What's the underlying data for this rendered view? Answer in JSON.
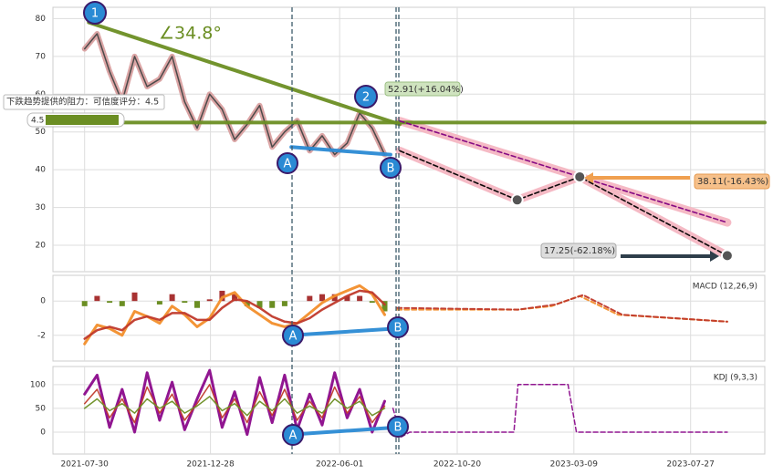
{
  "chart_data": [
    {
      "type": "line",
      "xlim": [
        -38,
        816
      ],
      "ylim": [
        13,
        83
      ],
      "yticks": [
        20,
        30,
        40,
        50,
        60,
        70,
        80
      ],
      "grid": true,
      "x": [
        0,
        15,
        30,
        45,
        60,
        75,
        90,
        105,
        120,
        135,
        150,
        165,
        180,
        195,
        210,
        225,
        240,
        255,
        270,
        285,
        300,
        315,
        330,
        345,
        360
      ],
      "series": [
        {
          "color": "#f4b6c2",
          "width": 9,
          "x": [
            378,
            519,
            594,
            771
          ],
          "values": [
            45,
            32,
            38.11,
            17.25
          ]
        },
        {
          "color": "#f4b6c2",
          "width": 9,
          "x": [
            378,
            771
          ],
          "values": [
            52.91,
            26
          ]
        },
        {
          "color": "#d9a0a0",
          "width": 6,
          "values": [
            72,
            76,
            66,
            58,
            70,
            62,
            64,
            70,
            58,
            51,
            60,
            56,
            48,
            52,
            57,
            46,
            50,
            53,
            45,
            49,
            44,
            47,
            55,
            51,
            44
          ]
        },
        {
          "color": "#444444",
          "width": 1.5,
          "values": [
            72,
            76,
            66,
            58,
            70,
            62,
            64,
            70,
            58,
            51,
            60,
            56,
            48,
            52,
            57,
            46,
            50,
            53,
            45,
            49,
            44,
            47,
            55,
            51,
            44
          ]
        },
        {
          "color": "#6b8e23",
          "width": 4,
          "x": [
            5,
            378
          ],
          "values": [
            79,
            52
          ]
        },
        {
          "color": "#6b8e23",
          "width": 4,
          "x": [
            -38,
            816
          ],
          "values": [
            52.5,
            52.5
          ]
        },
        {
          "color": "#2a8ad4",
          "width": 4,
          "x": [
            248,
            367
          ],
          "values": [
            46,
            44
          ]
        },
        {
          "color": "#000000",
          "width": 1.6,
          "dash": true,
          "x": [
            378,
            519,
            594,
            771
          ],
          "values": [
            45,
            32,
            38.11,
            17.25
          ]
        },
        {
          "color": "#800080",
          "width": 1.6,
          "dash": true,
          "x": [
            378,
            771
          ],
          "values": [
            52.91,
            26
          ]
        }
      ]
    },
    {
      "type": "line",
      "xlim": [
        -38,
        816
      ],
      "ylim": [
        -3.5,
        1.5
      ],
      "yticks": [
        0,
        -2
      ],
      "grid": true,
      "title": "MACD (12,26,9)",
      "x": [
        0,
        15,
        30,
        45,
        60,
        75,
        90,
        105,
        120,
        135,
        150,
        165,
        180,
        195,
        210,
        225,
        240,
        255,
        270,
        285,
        300,
        315,
        330,
        345,
        360
      ],
      "hist": {
        "up_color": "#a83232",
        "down_color": "#6b8e23",
        "values": [
          -0.3,
          0.3,
          -0.1,
          -0.3,
          0.5,
          0,
          -0.2,
          0.4,
          -0.1,
          -0.4,
          0.1,
          0.6,
          0.4,
          -0.3,
          -0.4,
          -0.4,
          -0.3,
          0,
          0.3,
          0.4,
          0.4,
          0.3,
          0.3,
          -0.1,
          -0.6
        ]
      },
      "series": [
        {
          "color": "#f28e2b",
          "width": 3,
          "values": [
            -2.5,
            -1.4,
            -1.6,
            -2.0,
            -0.6,
            -0.9,
            -1.3,
            -0.3,
            -0.8,
            -1.5,
            -1.0,
            0.2,
            0.5,
            -0.3,
            -0.8,
            -1.3,
            -1.5,
            -1.3,
            -0.7,
            -0.1,
            0.3,
            0.6,
            0.9,
            0.4,
            -0.8
          ]
        },
        {
          "color": "#c0392b",
          "width": 2.5,
          "values": [
            -2.2,
            -1.7,
            -1.5,
            -1.7,
            -1.1,
            -0.9,
            -1.1,
            -0.7,
            -0.7,
            -1.1,
            -1.1,
            -0.4,
            0.1,
            0,
            -0.4,
            -0.9,
            -1.2,
            -1.3,
            -1.0,
            -0.5,
            -0.1,
            0.3,
            0.6,
            0.5,
            -0.2
          ]
        },
        {
          "color": "#f28e2b",
          "width": 2,
          "dash": true,
          "x": [
            375,
            520,
            560,
            594,
            640,
            771
          ],
          "values": [
            -0.5,
            -0.5,
            -0.3,
            0.3,
            -0.8,
            -1.2
          ]
        },
        {
          "color": "#c0392b",
          "width": 2,
          "dash": true,
          "x": [
            375,
            520,
            565,
            598,
            645,
            771
          ],
          "values": [
            -0.4,
            -0.5,
            -0.2,
            0.35,
            -0.8,
            -1.2
          ]
        },
        {
          "color": "#2a8ad4",
          "width": 4,
          "x": [
            248,
            375
          ],
          "values": [
            -2,
            -1.6
          ]
        }
      ]
    },
    {
      "type": "line",
      "xlim": [
        -38,
        816
      ],
      "ylim": [
        -46,
        138
      ],
      "yticks": [
        0,
        50,
        100
      ],
      "grid": true,
      "title": "KDJ (9,3,3)",
      "xticks": [
        {
          "value": 0,
          "label": "2021-07-30"
        },
        {
          "value": 151,
          "label": "2021-12-28"
        },
        {
          "value": 306,
          "label": "2022-06-01"
        },
        {
          "value": 447,
          "label": "2022-10-20"
        },
        {
          "value": 587,
          "label": "2023-03-09"
        },
        {
          "value": 727,
          "label": "2023-07-27"
        }
      ],
      "x": [
        0,
        15,
        30,
        45,
        60,
        75,
        90,
        105,
        120,
        135,
        150,
        165,
        180,
        195,
        210,
        225,
        240,
        255,
        270,
        285,
        300,
        315,
        330,
        345,
        360
      ],
      "series": [
        {
          "color": "#8b0a8b",
          "width": 3,
          "values": [
            80,
            120,
            10,
            90,
            0,
            125,
            25,
            105,
            5,
            70,
            130,
            10,
            85,
            -5,
            115,
            20,
            120,
            5,
            80,
            15,
            125,
            30,
            90,
            0,
            65
          ]
        },
        {
          "color": "#c0392b",
          "width": 1.5,
          "values": [
            60,
            90,
            30,
            70,
            20,
            95,
            40,
            80,
            25,
            60,
            100,
            30,
            70,
            20,
            85,
            35,
            90,
            25,
            65,
            30,
            95,
            40,
            75,
            20,
            55
          ]
        },
        {
          "color": "#6b8e23",
          "width": 1.5,
          "values": [
            50,
            70,
            45,
            60,
            40,
            70,
            50,
            65,
            40,
            55,
            75,
            45,
            60,
            35,
            65,
            45,
            70,
            40,
            55,
            40,
            70,
            50,
            65,
            35,
            50
          ]
        },
        {
          "color": "#8b0a8b",
          "width": 1.5,
          "dash": true,
          "x": [
            370,
            380,
            390,
            500,
            515,
            520,
            580,
            590,
            771
          ],
          "values": [
            50,
            -10,
            0,
            0,
            0,
            100,
            100,
            0,
            0
          ]
        },
        {
          "color": "#2a8ad4",
          "width": 4,
          "x": [
            248,
            375
          ],
          "values": [
            -5,
            10
          ]
        }
      ]
    }
  ],
  "annotations": {
    "angle": "∠34.8°",
    "resistance": "下跌趋势提供的阻力：可信度评分：4.5",
    "score": "4.5",
    "high": "52.91(+16.04%)",
    "mid": "38.11(-16.43%)",
    "low": "17.25(-62.18%)"
  },
  "markers": {
    "one": "1",
    "two": "2",
    "a": "A",
    "b": "B"
  }
}
